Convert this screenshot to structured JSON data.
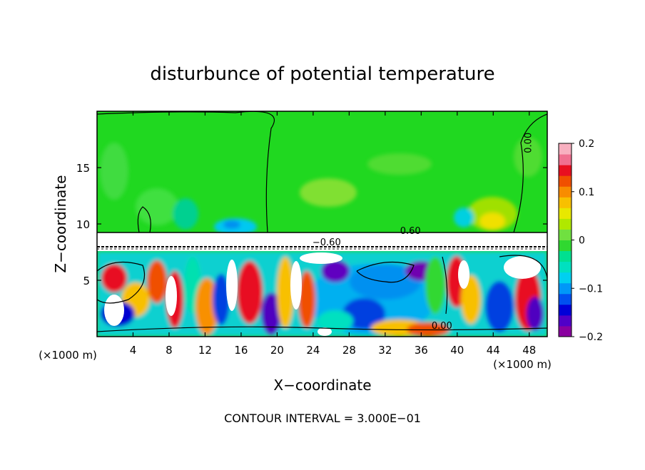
{
  "chart_data": {
    "type": "heatmap",
    "title": "disturbunce of potential temperature",
    "xlabel": "X−coordinate",
    "ylabel": "Z−coordinate",
    "x_unit_left": "(×1000 m)",
    "x_unit_right": "(×1000 m)",
    "footer": "CONTOUR INTERVAL = 3.000E−01",
    "xlim": [
      0,
      50
    ],
    "ylim": [
      0,
      20
    ],
    "xticks": [
      4,
      8,
      12,
      16,
      20,
      24,
      28,
      32,
      36,
      40,
      44,
      48
    ],
    "xtick_labels": [
      "4",
      "8",
      "12",
      "16",
      "20",
      "24",
      "28",
      "32",
      "36",
      "40",
      "44",
      "48"
    ],
    "yticks": [
      5,
      10,
      15
    ],
    "ytick_labels": [
      "5",
      "10",
      "15"
    ],
    "colorbar": {
      "min": -0.2,
      "max": 0.2,
      "ticks": [
        0.2,
        0.1,
        0,
        -0.1,
        -0.2
      ],
      "tick_labels": [
        "0.2",
        "0.1",
        "0",
        "−0.1",
        "−0.2"
      ],
      "colors": [
        "#8a00a0",
        "#5000c8",
        "#0000d8",
        "#0050f0",
        "#0098f8",
        "#00d0f0",
        "#00e0c0",
        "#00e090",
        "#30d830",
        "#70e040",
        "#b0e800",
        "#e8e800",
        "#f8c000",
        "#f88c00",
        "#f05000",
        "#e81020",
        "#f07090",
        "#f8b0c0"
      ]
    },
    "contour_labels": [
      {
        "text": "0.00",
        "x": 48.2,
        "y": 17.2
      },
      {
        "text": "0.60",
        "x": 34.8,
        "y": 9.1
      },
      {
        "text": "−0.60",
        "x": 25.5,
        "y": 8.1
      },
      {
        "text": "0.00",
        "x": 38.3,
        "y": 0.7
      }
    ],
    "grid": false,
    "legend": "colorbar-right"
  }
}
